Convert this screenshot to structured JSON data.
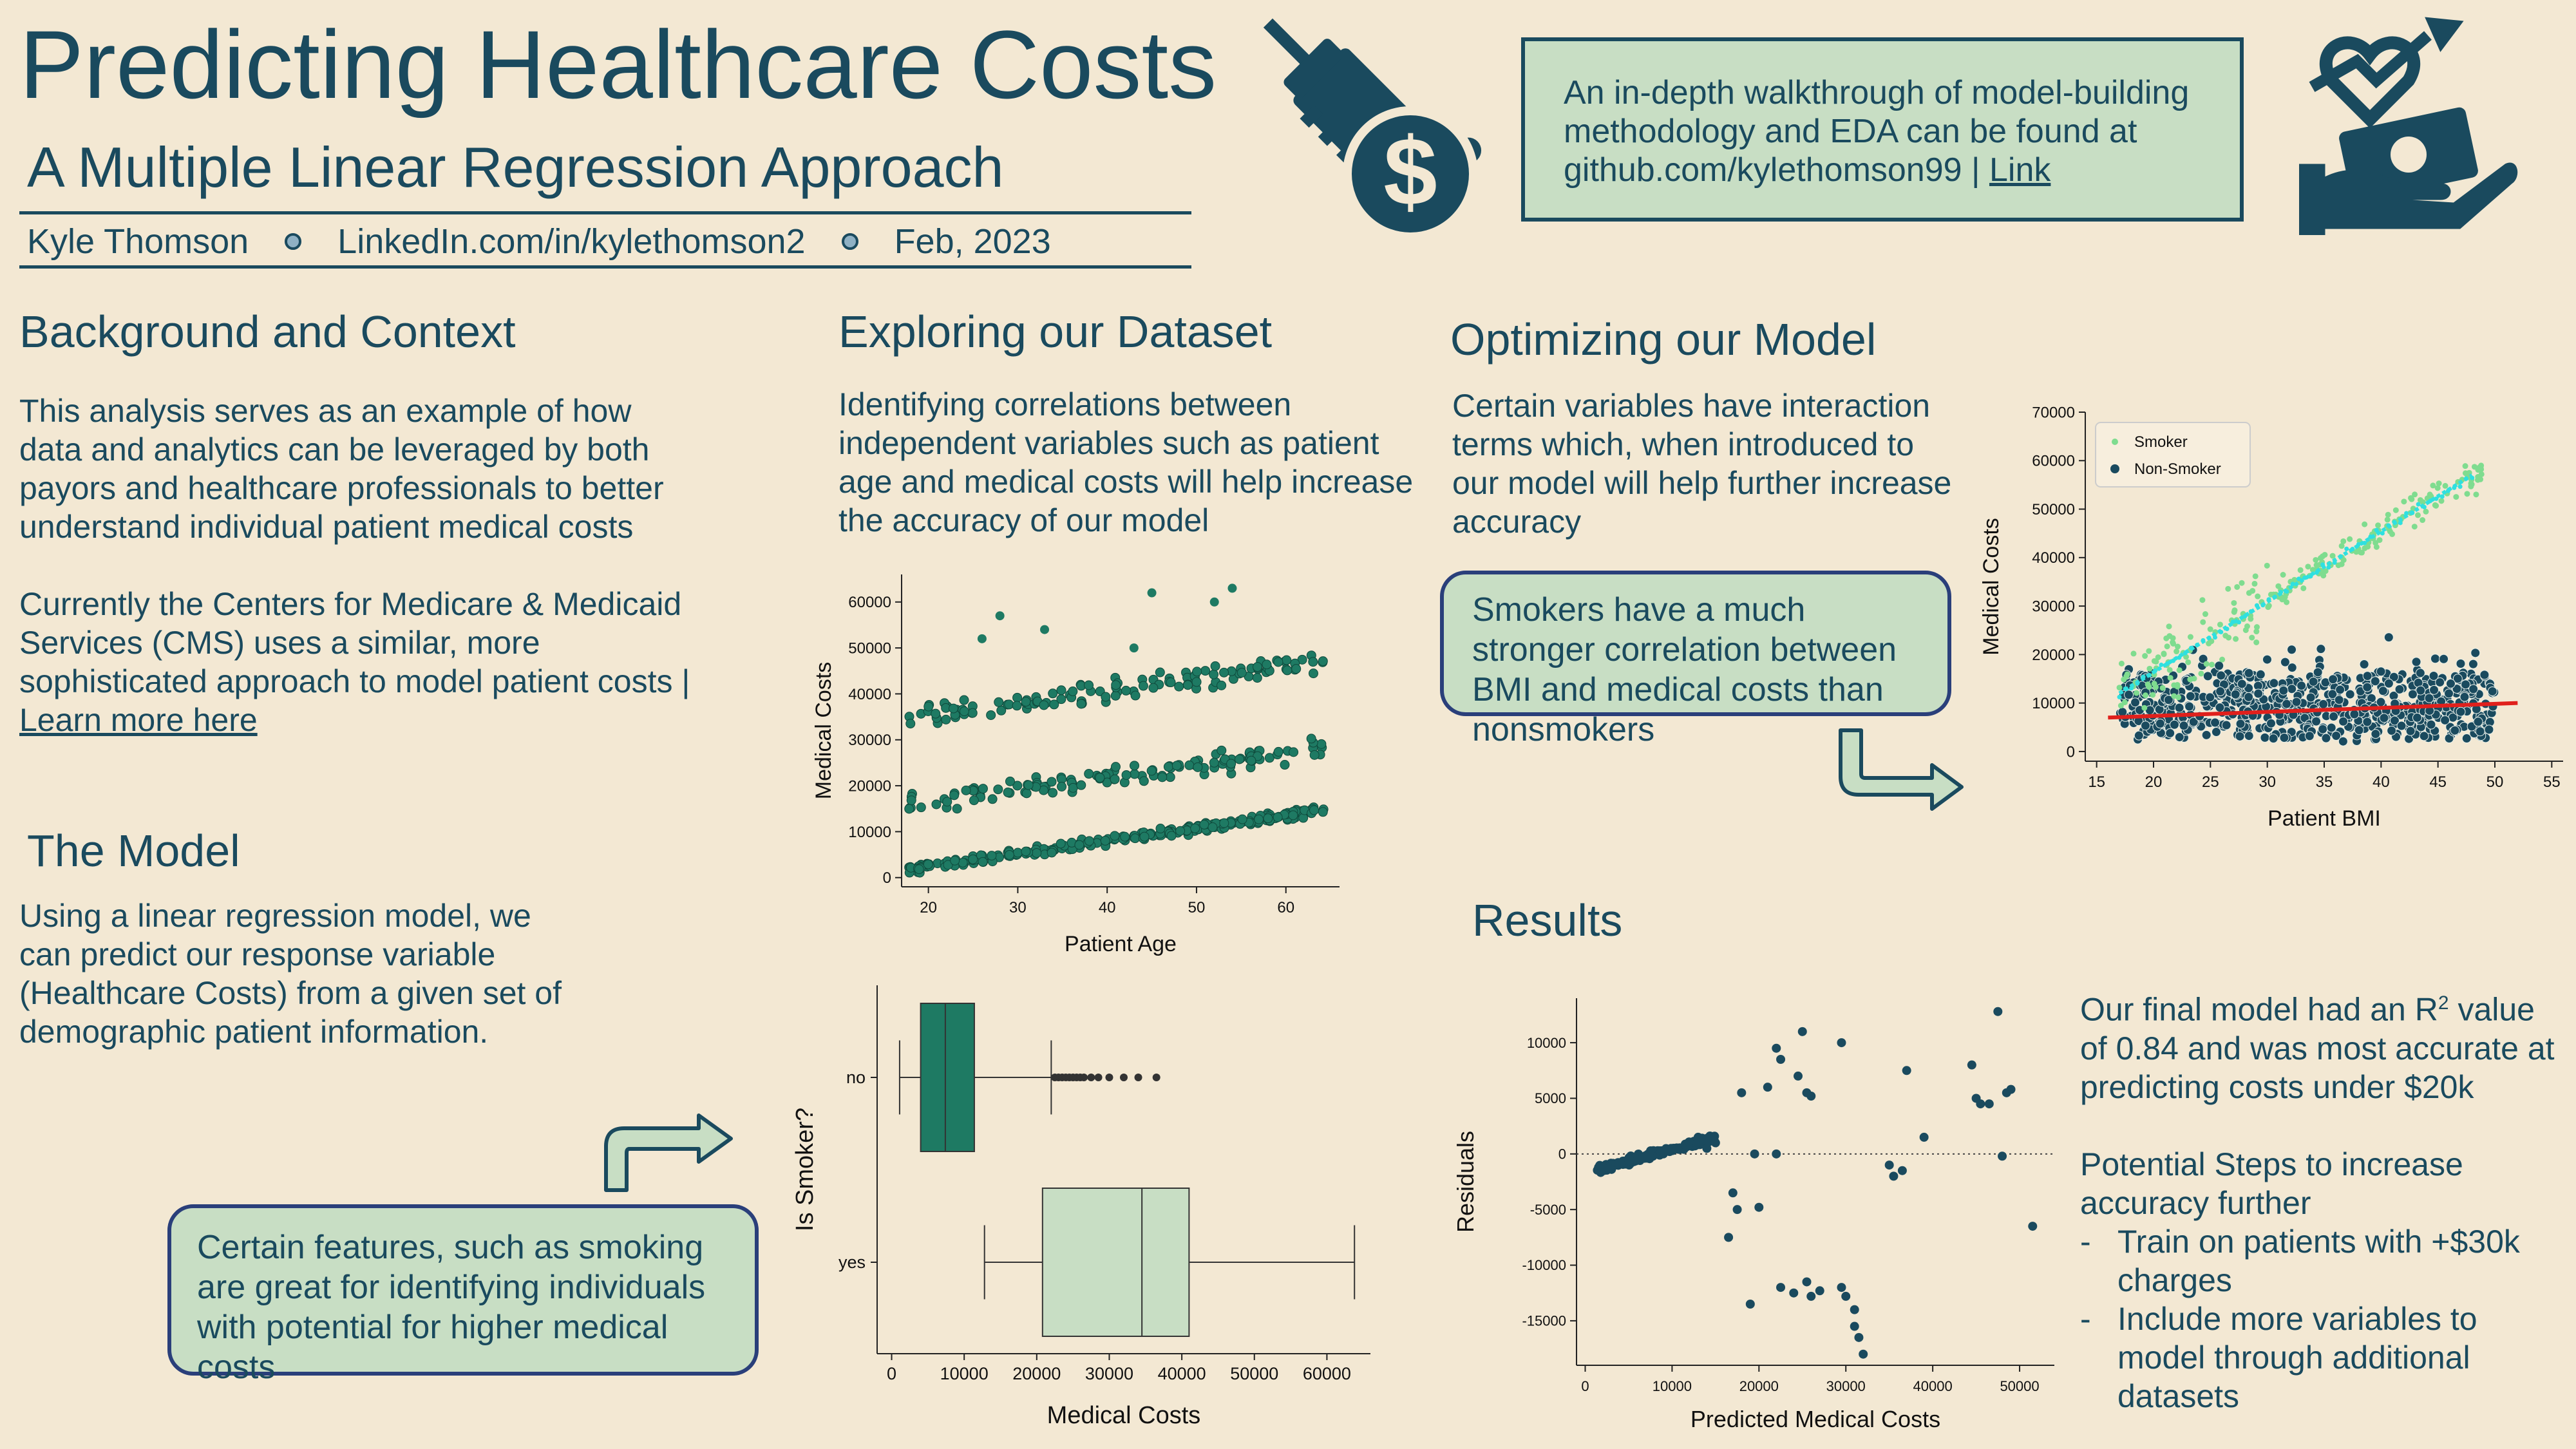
{
  "header": {
    "title": "Predicting Healthcare Costs",
    "subtitle": "A Multiple Linear Regression Approach",
    "author": "Kyle Thomson",
    "linkedin": "LinkedIn.com/in/kylethomson2",
    "date": "Feb, 2023",
    "walkthrough_text": "An in-depth walkthrough of model-building methodology and EDA can be found at github.com/kylethomson99 |",
    "walkthrough_link": "Link"
  },
  "icons": {
    "syringe": "syringe-dollar-icon",
    "hand": "hand-heart-money-icon",
    "arrow": "curved-arrow-icon"
  },
  "colors": {
    "ink": "#1a4a5e",
    "background": "#f3e8d3",
    "callout": "#c8dec4",
    "callout_border": "#2a3f7a",
    "scatter_green": "#1e7a63",
    "smoker": "#7fdc8f",
    "non_smoker": "#1a4a5e",
    "smoker_fit": "#2fe0e0",
    "non_smoker_fit": "#e0201c"
  },
  "background": {
    "heading": "Background and Context",
    "para1": "This analysis serves as an example of how data and analytics can be leveraged by both payors and healthcare professionals to better understand individual patient medical costs",
    "para2": "Currently the Centers for Medicare & Medicaid Services (CMS) uses a similar, more sophisticated approach to model patient costs |",
    "para2_link": "Learn more here"
  },
  "model": {
    "heading": "The Model",
    "text": "Using a linear regression model, we can predict our response variable (Healthcare Costs) from a given set of demographic patient information.",
    "callout": "Certain features, such as smoking are great for identifying individuals with potential for higher medical costs"
  },
  "explore": {
    "heading": "Exploring our Dataset",
    "text": "Identifying correlations between independent variables such as patient age and medical costs will help increase the accuracy of our model"
  },
  "optimize": {
    "heading": "Optimizing our Model",
    "text": "Certain variables have interaction terms which, when introduced to our model will help further increase accuracy",
    "callout": "Smokers have a much stronger correlation between BMI and medical costs than nonsmokers"
  },
  "results": {
    "heading": "Results",
    "text1_a": "Our final model had an R",
    "text1_sup": "2",
    "text1_b": " value of 0.84 and was most accurate at predicting costs under $20k",
    "text2": "Potential Steps to increase accuracy further",
    "bullets": [
      "Train on patients with +$30k charges",
      "Include more variables to model through additional datasets"
    ]
  },
  "chart_data": [
    {
      "type": "scatter",
      "xlabel": "Patient Age",
      "ylabel": "Medical Costs",
      "xlim": [
        17,
        66
      ],
      "ylim": [
        -2000,
        66000
      ],
      "xticks": [
        20,
        30,
        40,
        50,
        60
      ],
      "yticks": [
        0,
        10000,
        20000,
        30000,
        40000,
        50000,
        60000
      ],
      "bands": [
        {
          "name": "",
          "x_range": [
            18,
            64
          ],
          "y_start": 2000,
          "y_end": 14500,
          "spread": 1400
        },
        {
          "name": "",
          "x_range": [
            18,
            64
          ],
          "y_start": 16000,
          "y_end": 28000,
          "spread": 3500
        },
        {
          "name": "",
          "x_range": [
            18,
            64
          ],
          "y_start": 35000,
          "y_end": 47000,
          "spread": 3500
        }
      ],
      "outliers": [
        [
          28,
          57000
        ],
        [
          33,
          54000
        ],
        [
          45,
          62000
        ],
        [
          52,
          60000
        ],
        [
          54,
          63000
        ],
        [
          26,
          52000
        ],
        [
          43,
          50000
        ]
      ]
    },
    {
      "type": "box",
      "xlabel": "Medical Costs",
      "ylabel": "Is Smoker?",
      "xlim": [
        -2000,
        66000
      ],
      "xticks": [
        0,
        10000,
        20000,
        30000,
        40000,
        50000,
        60000
      ],
      "categories": [
        "no",
        "yes"
      ],
      "boxes": [
        {
          "category": "no",
          "whisker_low": 1100,
          "q1": 4000,
          "median": 7400,
          "q3": 11400,
          "whisker_high": 22000,
          "fliers": [
            22500,
            23000,
            23500,
            24000,
            24500,
            25000,
            25500,
            26000,
            26500,
            27500,
            28500,
            30000,
            32000,
            34000,
            36500
          ]
        },
        {
          "category": "yes",
          "whisker_low": 12800,
          "q1": 20800,
          "median": 34500,
          "q3": 41000,
          "whisker_high": 63800,
          "fliers": []
        }
      ]
    },
    {
      "type": "scatter",
      "xlabel": "Patient BMI",
      "ylabel": "Medical Costs",
      "xlim": [
        14,
        56
      ],
      "ylim": [
        -2000,
        70000
      ],
      "xticks": [
        15,
        20,
        25,
        30,
        35,
        40,
        45,
        50,
        55
      ],
      "yticks": [
        0,
        10000,
        20000,
        30000,
        40000,
        50000,
        60000,
        70000
      ],
      "legend": [
        "Smoker",
        "Non-Smoker"
      ],
      "legend_position": "top-left",
      "series": [
        {
          "name": "Smoker",
          "fit": [
            [
              17,
              12000
            ],
            [
              48,
              57000
            ]
          ],
          "x_range": [
            17,
            53
          ],
          "spread": 5000
        },
        {
          "name": "Non-Smoker",
          "fit": [
            [
              16,
              7000
            ],
            [
              52,
              10000
            ]
          ],
          "x_range": [
            16,
            53
          ],
          "spread": 4000
        }
      ]
    },
    {
      "type": "scatter",
      "xlabel": "Predicted Medical Costs",
      "ylabel": "Residuals",
      "xlim": [
        -1000,
        54000
      ],
      "ylim": [
        -19000,
        14000
      ],
      "xticks": [
        0,
        10000,
        20000,
        30000,
        40000,
        50000
      ],
      "yticks": [
        -15000,
        -10000,
        -5000,
        0,
        5000,
        10000
      ],
      "zero_line": true,
      "points": [
        [
          18000,
          5500
        ],
        [
          21000,
          6000
        ],
        [
          22000,
          9500
        ],
        [
          22500,
          8500
        ],
        [
          24500,
          7000
        ],
        [
          25000,
          11000
        ],
        [
          25500,
          5500
        ],
        [
          26000,
          5200
        ],
        [
          29500,
          10000
        ],
        [
          35000,
          -1000
        ],
        [
          35500,
          -2000
        ],
        [
          36500,
          -1500
        ],
        [
          37000,
          7500
        ],
        [
          39000,
          1500
        ],
        [
          44500,
          8000
        ],
        [
          45000,
          5000
        ],
        [
          45500,
          4500
        ],
        [
          46500,
          4500
        ],
        [
          47500,
          12800
        ],
        [
          48000,
          -200
        ],
        [
          48500,
          5500
        ],
        [
          49000,
          5800
        ],
        [
          51500,
          -6500
        ],
        [
          17000,
          -3500
        ],
        [
          16500,
          -7500
        ],
        [
          17500,
          -5000
        ],
        [
          19000,
          -13500
        ],
        [
          20000,
          -4800
        ],
        [
          22500,
          -12000
        ],
        [
          24000,
          -12500
        ],
        [
          25500,
          -11500
        ],
        [
          26000,
          -12800
        ],
        [
          27000,
          -12300
        ],
        [
          29500,
          -12000
        ],
        [
          30000,
          -12800
        ],
        [
          31000,
          -15500
        ],
        [
          31500,
          -16500
        ],
        [
          32000,
          -18000
        ],
        [
          31000,
          -14000
        ],
        [
          15000,
          1000
        ],
        [
          14000,
          500
        ],
        [
          13000,
          1500
        ],
        [
          19500,
          0
        ],
        [
          22000,
          0
        ]
      ]
    }
  ]
}
